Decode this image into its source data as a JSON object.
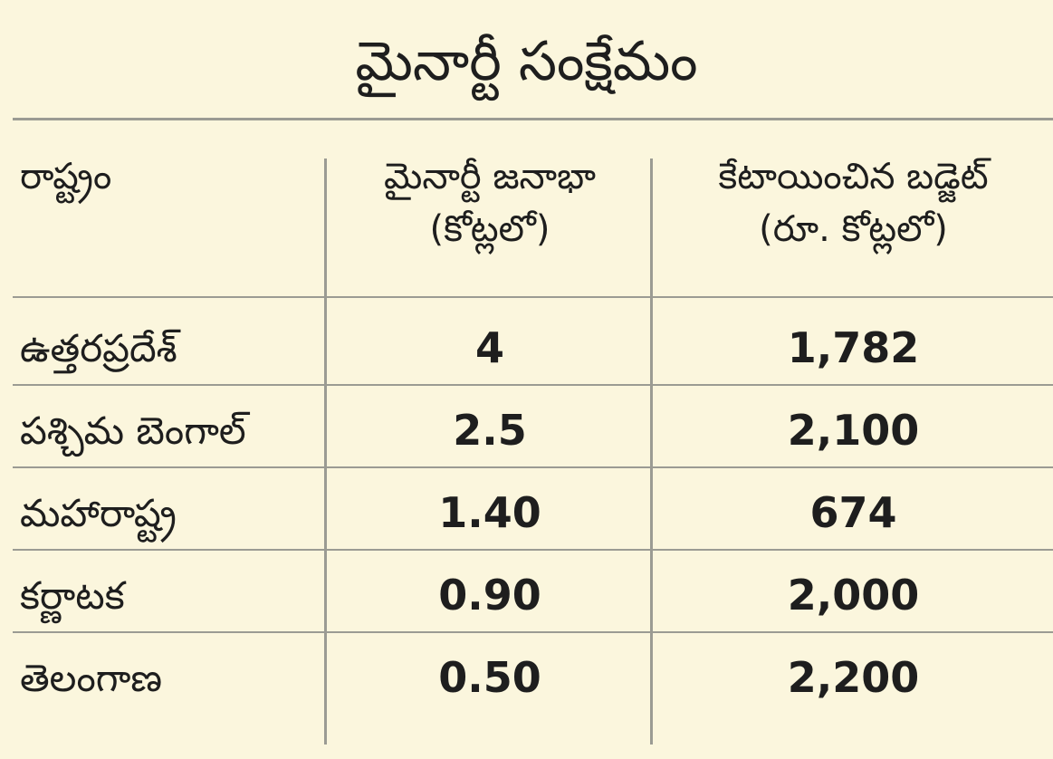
{
  "chart_data": {
    "type": "table",
    "title": "మైనార్టీ సంక్షేమం",
    "columns": [
      "రాష్ట్రం",
      "మైనార్టీ జనాభా (కోట్లలో)",
      "కేటాయించిన బడ్జెట్ (రూ. కోట్లలో)"
    ],
    "header": {
      "state": "రాష్ట్రం",
      "population_line1": "మైనార్టీ జనాభా",
      "population_line2": "(కోట్లలో)",
      "budget_line1": "కేటాయించిన బడ్జెట్",
      "budget_line2": "(రూ. కోట్లలో)"
    },
    "rows": [
      {
        "state": "ఉత్తరప్రదేశ్",
        "population": "4",
        "budget": "1,782"
      },
      {
        "state": "పశ్చిమ బెంగాల్",
        "population": "2.5",
        "budget": "2,100"
      },
      {
        "state": "మహారాష్ట్ర",
        "population": "1.40",
        "budget": "674"
      },
      {
        "state": "కర్ణాటక",
        "population": "0.90",
        "budget": "2,000"
      },
      {
        "state": "తెలంగాణ",
        "population": "0.50",
        "budget": "2,200"
      }
    ]
  }
}
